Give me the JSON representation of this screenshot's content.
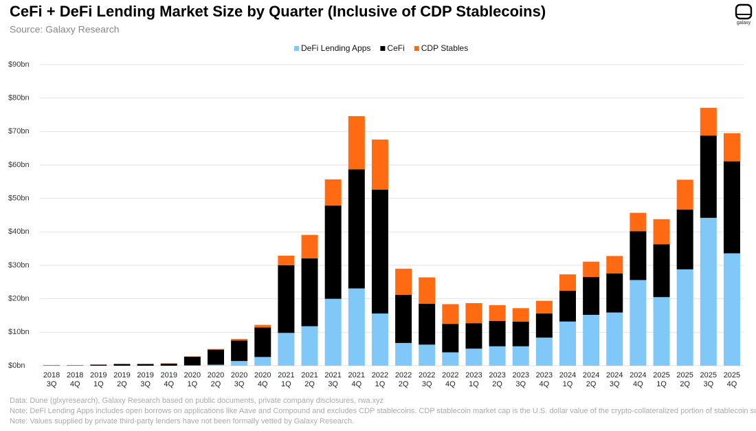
{
  "chart_data": {
    "type": "stacked_bar",
    "title": "CeFi + DeFi Lending Market Size by Quarter (Inclusive of CDP Stablecoins)",
    "subtitle": "Source: Galaxy Research",
    "logo_text": "galaxy",
    "categories": [
      "2018 3Q",
      "2018 4Q",
      "2019 1Q",
      "2019 2Q",
      "2019 3Q",
      "2019 4Q",
      "2020 1Q",
      "2020 2Q",
      "2020 3Q",
      "2020 4Q",
      "2021 1Q",
      "2021 2Q",
      "2021 3Q",
      "2021 4Q",
      "2022 1Q",
      "2022 2Q",
      "2022 3Q",
      "2022 4Q",
      "2023 1Q",
      "2023 2Q",
      "2023 3Q",
      "2023 4Q",
      "2024 1Q",
      "2024 2Q",
      "2024 3Q",
      "2024 4Q",
      "2025 1Q",
      "2025 2Q",
      "2025 3Q",
      "2025 4Q"
    ],
    "series": [
      {
        "name": "DeFi Lending Apps",
        "color": "#7fc8f8",
        "values": [
          0,
          0,
          0,
          0,
          0,
          0,
          0.1,
          0.3,
          1.4,
          2.6,
          9.8,
          11.8,
          20.0,
          23.1,
          15.6,
          6.8,
          6.3,
          4.0,
          5.1,
          5.8,
          5.8,
          8.4,
          13.2,
          15.2,
          15.9,
          25.6,
          20.5,
          28.8,
          44.2,
          33.6
        ]
      },
      {
        "name": "CeFi",
        "color": "#000000",
        "values": [
          0.1,
          0.1,
          0.3,
          0.5,
          0.5,
          0.6,
          2.6,
          4.5,
          6.1,
          8.8,
          20.2,
          20.3,
          27.9,
          35.6,
          37.0,
          14.4,
          12.2,
          8.5,
          7.6,
          7.6,
          7.4,
          7.2,
          9.2,
          11.3,
          11.7,
          14.6,
          15.8,
          17.9,
          24.6,
          27.5
        ]
      },
      {
        "name": "CDP Stables",
        "color": "#ff6a13",
        "values": [
          0,
          0,
          0.05,
          0.05,
          0.05,
          0.1,
          0.1,
          0.2,
          0.5,
          0.8,
          2.9,
          7.0,
          7.8,
          15.9,
          15.0,
          7.8,
          7.9,
          5.9,
          6.0,
          4.7,
          4.0,
          3.8,
          4.9,
          4.6,
          5.2,
          5.5,
          7.5,
          8.9,
          8.3,
          8.4
        ]
      }
    ],
    "ylim": [
      0,
      90
    ],
    "yticks": [
      {
        "value": 0,
        "label": "$0bn"
      },
      {
        "value": 10,
        "label": "$10bn"
      },
      {
        "value": 20,
        "label": "$20bn"
      },
      {
        "value": 30,
        "label": "$30bn"
      },
      {
        "value": 40,
        "label": "$40bn"
      },
      {
        "value": 50,
        "label": "$50bn"
      },
      {
        "value": 60,
        "label": "$60bn"
      },
      {
        "value": 70,
        "label": "$70bn"
      },
      {
        "value": 80,
        "label": "$80bn"
      },
      {
        "value": 90,
        "label": "$90bn"
      }
    ],
    "grid": true,
    "legend": "top",
    "notes": [
      "Data: Dune (glxyresearch), Galaxy Research based on public documents, private company disclosures, rwa.xyz",
      "Note: DeFi Lending Apps includes open borrows on applications like Aave and Compound and excludes CDP stablecoins. CDP stablecoin market cap is the U.S. dollar value of the crypto-collateralized portion of stablecoin suppl",
      "Note: Values supplied by private third-party lenders have not been formally vetted  by Galaxy Research."
    ]
  }
}
